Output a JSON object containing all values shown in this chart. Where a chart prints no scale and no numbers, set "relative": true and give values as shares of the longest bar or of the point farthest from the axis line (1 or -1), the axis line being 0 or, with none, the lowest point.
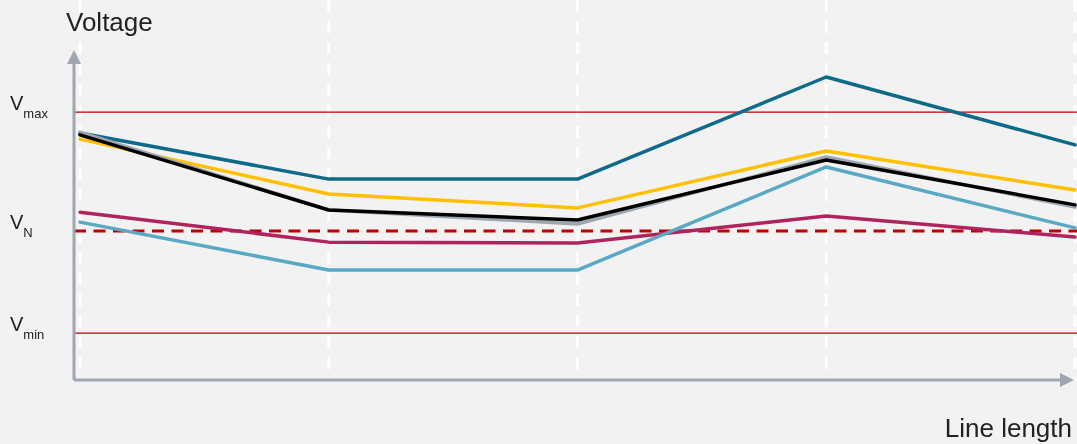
{
  "chart_data": {
    "type": "line",
    "relative": true,
    "xlabel": "Line length",
    "ylabel": "Voltage",
    "categories": [
      null,
      null,
      null,
      null,
      null
    ],
    "grid": "x",
    "marker": "none",
    "line_style": "solid",
    "series": [
      {
        "color": "#0e6a88",
        "values": [
          0.815,
          0.663,
          0.663,
          1,
          0.776
        ]
      },
      {
        "color": "#ffc000",
        "values": [
          0.795,
          0.614,
          0.568,
          0.756,
          0.627
        ]
      },
      {
        "color": "#9ea7b0",
        "values": [
          0.818,
          0.561,
          0.515,
          0.736,
          0.571
        ]
      },
      {
        "color": "#000000",
        "values": [
          0.809,
          0.561,
          0.528,
          0.726,
          0.578
        ]
      },
      {
        "color": "#b0245e",
        "values": [
          0.554,
          0.455,
          0.452,
          0.541,
          0.472
        ]
      },
      {
        "color": "#5aa9c4",
        "values": [
          0.521,
          0.363,
          0.363,
          0.703,
          0.502
        ]
      }
    ],
    "ref_lines": [
      {
        "axis": "y",
        "value": 0.884,
        "label": "V$_{max}$",
        "color": "#c00000",
        "line_style": "solid"
      },
      {
        "axis": "y",
        "value": 0.492,
        "label": "V$_{N}$",
        "color": "#c00000",
        "line_style": "dashed"
      },
      {
        "axis": "y",
        "value": 0.155,
        "label": "V$_{min}$",
        "color": "#c00000",
        "line_style": "solid"
      }
    ]
  }
}
